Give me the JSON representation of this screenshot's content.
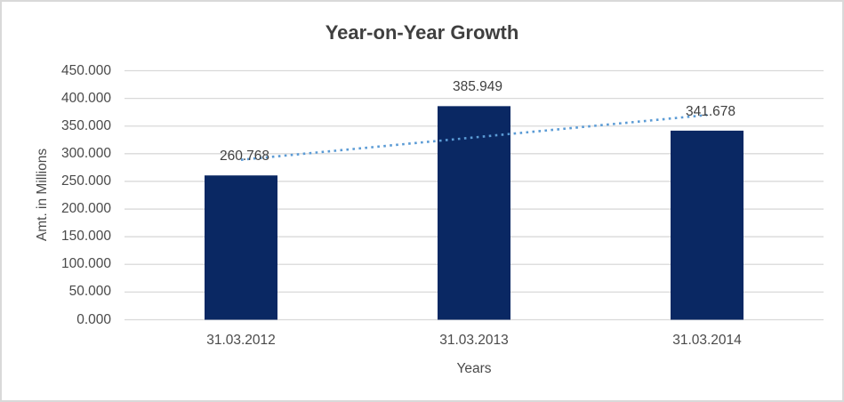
{
  "frame": {
    "background": "#ffffff",
    "border_color": "#d9d9d9"
  },
  "chart_data": {
    "type": "bar",
    "title": "Year-on-Year Growth",
    "categories": [
      "31.03.2012",
      "31.03.2013",
      "31.03.2014"
    ],
    "values": [
      260.768,
      385.949,
      341.678
    ],
    "data_labels": [
      "260.768",
      "385.949",
      "341.678"
    ],
    "xlabel": "Years",
    "ylabel": "Amt. in Millions",
    "ylim": [
      0,
      450
    ],
    "ytick_step": 50,
    "ytick_labels": [
      "0.000",
      "50.000",
      "100.000",
      "150.000",
      "200.000",
      "250.000",
      "300.000",
      "350.000",
      "400.000",
      "450.000"
    ],
    "grid": true,
    "legend": "none",
    "trendline": {
      "kind": "linear",
      "style": "dotted",
      "color": "#5b9bd5"
    },
    "colors": {
      "bar": "#0a2863",
      "gridline": "#d9d9d9",
      "title_text": "#3f3f3f",
      "axis_text": "#4a4a4a",
      "label_text": "#404040"
    }
  }
}
